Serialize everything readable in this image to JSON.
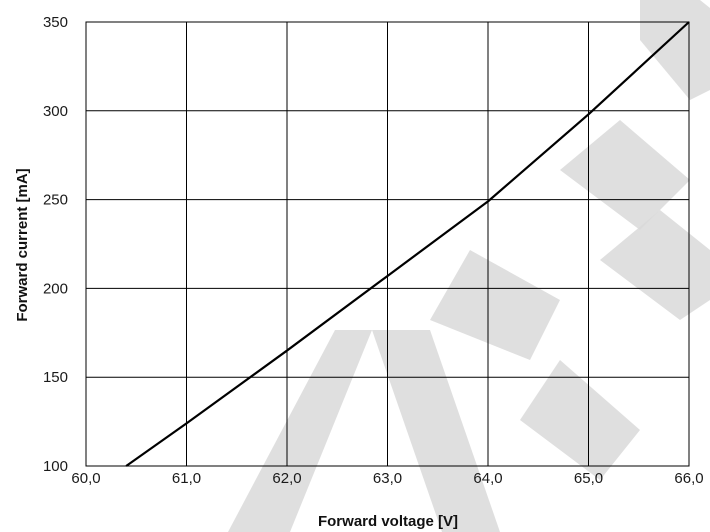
{
  "chart_data": {
    "type": "line",
    "xlabel": "Forward voltage [V]",
    "ylabel": "Forward current [mA]",
    "xlim": [
      60.0,
      66.0
    ],
    "ylim": [
      100,
      350
    ],
    "x_ticks": [
      60.0,
      61.0,
      62.0,
      63.0,
      64.0,
      65.0,
      66.0
    ],
    "x_tick_labels": [
      "60,0",
      "61,0",
      "62,0",
      "63,0",
      "64,0",
      "65,0",
      "66,0"
    ],
    "y_ticks": [
      100,
      150,
      200,
      250,
      300,
      350
    ],
    "y_tick_labels": [
      "100",
      "150",
      "200",
      "250",
      "300",
      "350"
    ],
    "grid": true,
    "legend": "none",
    "series": [
      {
        "x": [
          60.4,
          61.0,
          62.0,
          63.0,
          64.0,
          65.0,
          66.0
        ],
        "y": [
          100,
          124,
          165,
          207,
          249,
          298,
          350
        ]
      }
    ],
    "colors": {
      "line": "#000000",
      "grid": "#000000",
      "watermark": "#d9d9d9"
    }
  }
}
